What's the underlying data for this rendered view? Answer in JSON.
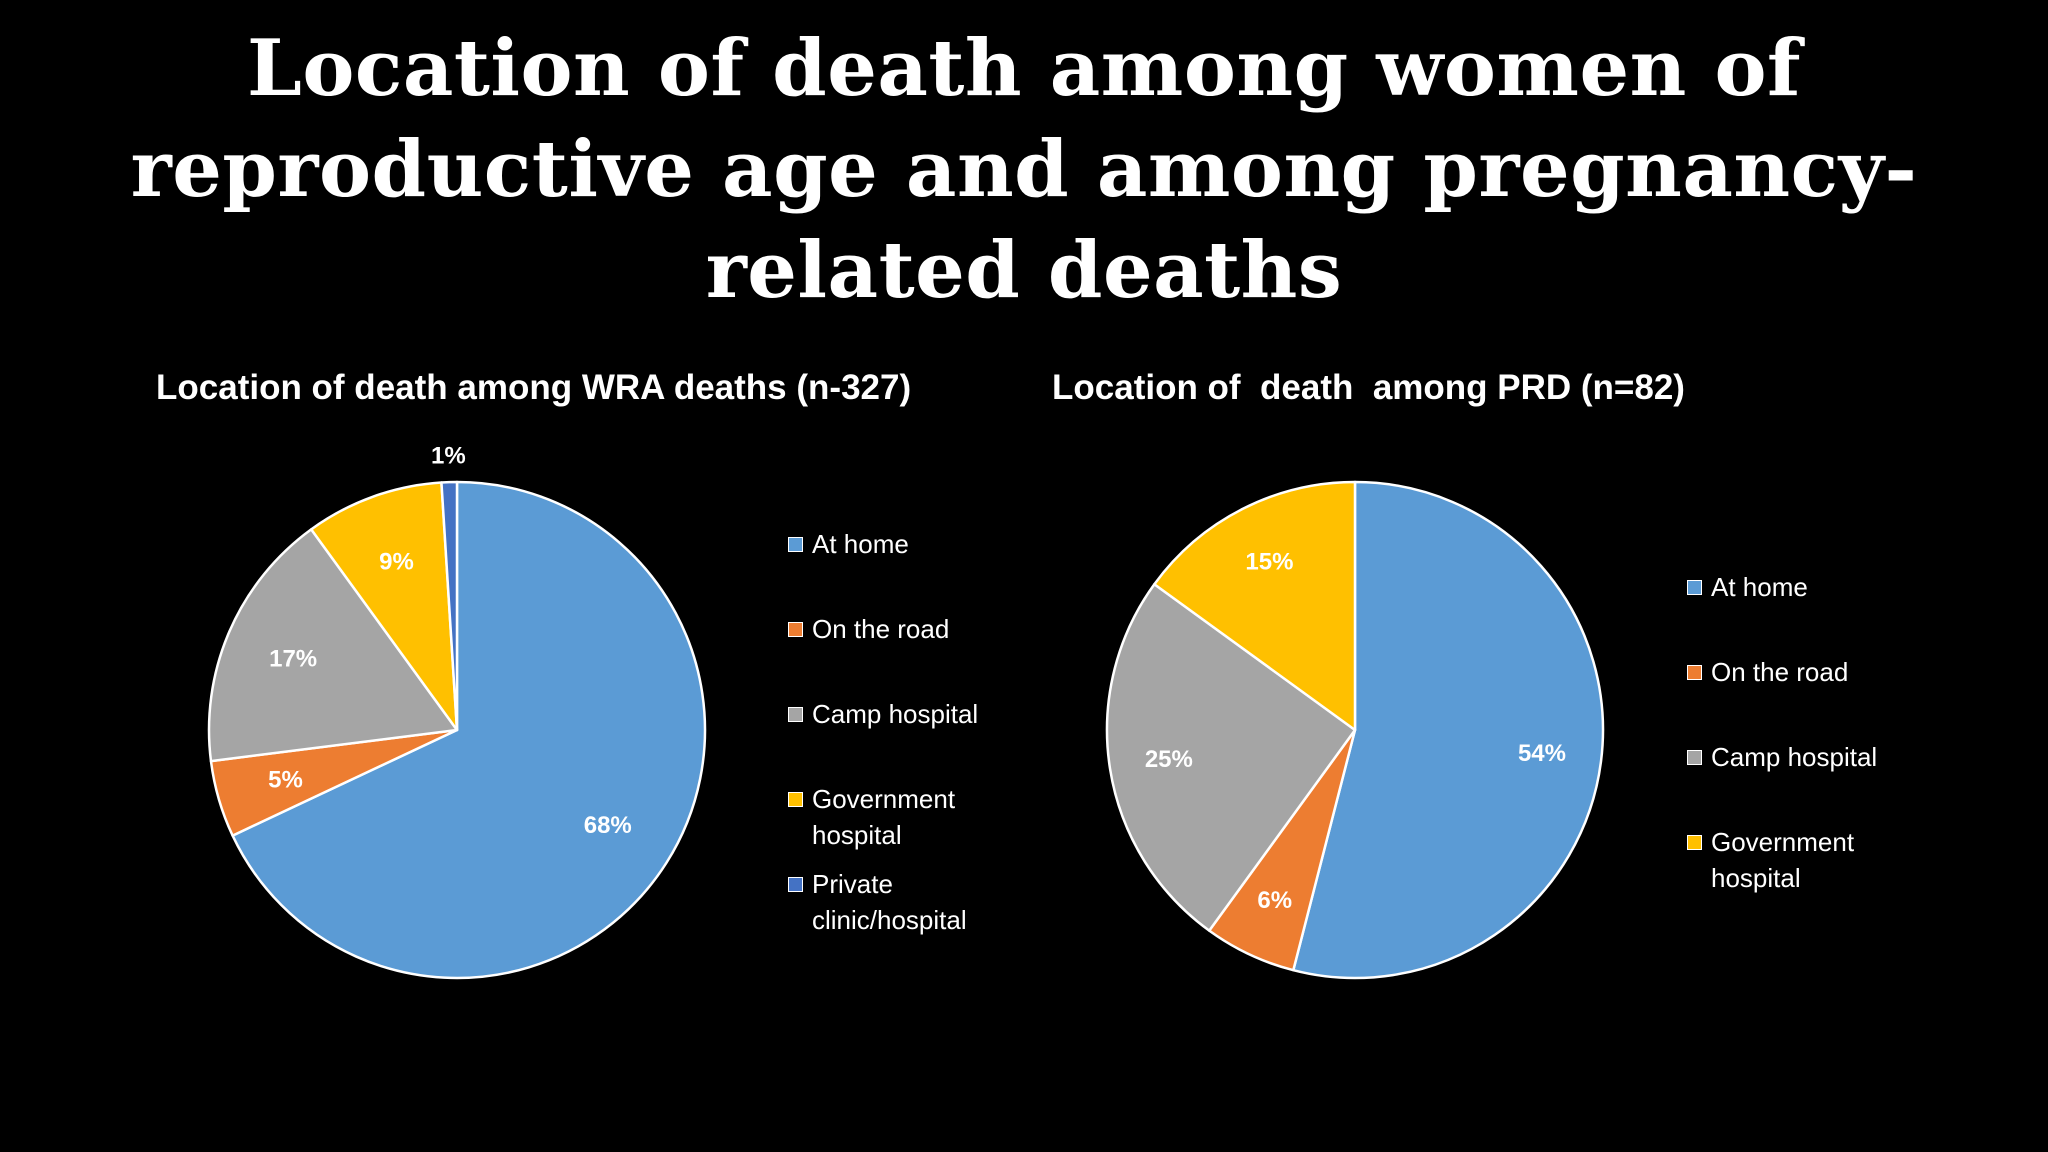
{
  "title_lines": [
    "Location of death among women of",
    "reproductive age and among pregnancy-",
    "related deaths"
  ],
  "chart_data": [
    {
      "type": "pie",
      "title": "Location of death among WRA deaths (n-327)",
      "start_angle_deg": 0,
      "direction": "clockwise",
      "legend_position": "right",
      "slices": [
        {
          "label": "At home",
          "value": 68,
          "data_label": "68%",
          "color": "#5B9BD5"
        },
        {
          "label": "On the road",
          "value": 5,
          "data_label": "5%",
          "color": "#ED7D31"
        },
        {
          "label": "Camp hospital",
          "value": 17,
          "data_label": "17%",
          "color": "#A5A5A5"
        },
        {
          "label": "Government hospital",
          "value": 9,
          "data_label": "9%",
          "color": "#FFC000"
        },
        {
          "label": "Private clinic/hospital",
          "value": 1,
          "data_label": "1%",
          "color": "#4472C4"
        }
      ]
    },
    {
      "type": "pie",
      "title": "Location of  death  among PRD (n=82)",
      "start_angle_deg": 0,
      "direction": "clockwise",
      "legend_position": "right",
      "slices": [
        {
          "label": "At home",
          "value": 54,
          "data_label": "54%",
          "color": "#5B9BD5"
        },
        {
          "label": "On the road",
          "value": 6,
          "data_label": "6%",
          "color": "#ED7D31"
        },
        {
          "label": "Camp hospital",
          "value": 25,
          "data_label": "25%",
          "color": "#A5A5A5"
        },
        {
          "label": "Government hospital",
          "value": 15,
          "data_label": "15%",
          "color": "#FFC000"
        }
      ]
    }
  ]
}
